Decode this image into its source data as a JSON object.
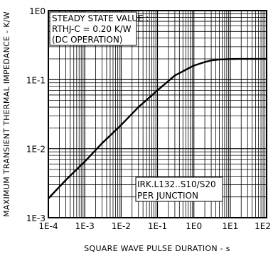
{
  "chart_data": {
    "type": "line",
    "title": "",
    "xlabel": "SQUARE WAVE PULSE DURATION - s",
    "ylabel": "MAXIMUM TRANSIENT THERMAL IMPEDANCE - K/W",
    "x_scale": "log",
    "y_scale": "log",
    "xlim": [
      0.0001,
      100
    ],
    "ylim": [
      0.001,
      1
    ],
    "x_ticks": [
      "1E-4",
      "1E-3",
      "1E-2",
      "1E-1",
      "1E0",
      "1E1",
      "1E2"
    ],
    "y_ticks": [
      "1E-3",
      "1E-2",
      "1E-1",
      "1E0"
    ],
    "grid": true,
    "annotations": {
      "steady_state": [
        "STEADY STATE VALUE :",
        "RTHJ-C = 0.20 K/W",
        "(DC OPERATION)"
      ],
      "device": [
        "IRK.L132..S10/S20",
        "PER JUNCTION"
      ]
    },
    "series": [
      {
        "x": [
          0.0001,
          0.0003,
          0.001,
          0.003,
          0.01,
          0.03,
          0.1,
          0.3,
          1,
          2,
          3,
          5,
          10,
          20,
          50,
          100
        ],
        "values": [
          0.0019,
          0.0035,
          0.0065,
          0.012,
          0.022,
          0.04,
          0.07,
          0.115,
          0.16,
          0.18,
          0.19,
          0.196,
          0.199,
          0.2,
          0.2,
          0.2
        ]
      }
    ]
  }
}
